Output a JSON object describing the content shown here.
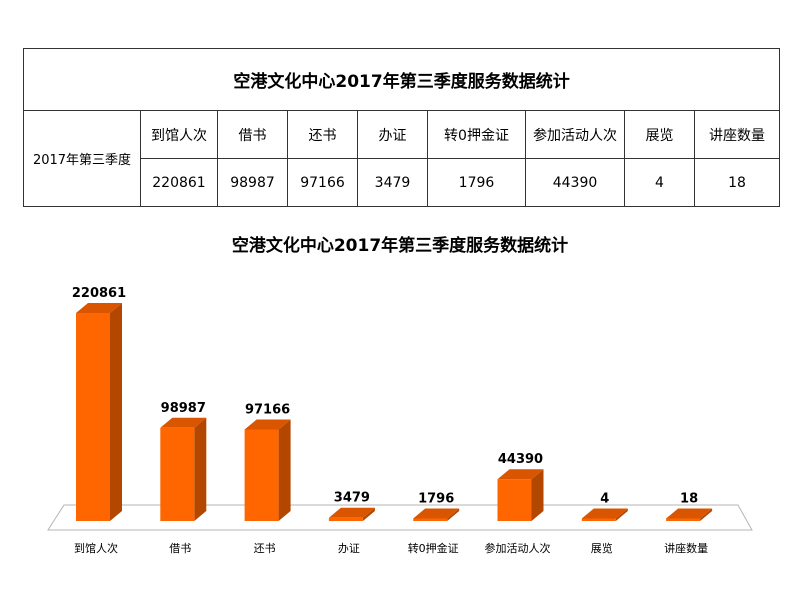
{
  "table": {
    "title": "空港文化中心2017年第三季度服务数据统计",
    "row_label": "2017年第三季度",
    "headers": [
      "到馆人次",
      "借书",
      "还书",
      "办证",
      "转0押金证",
      "参加活动人次",
      "展览",
      "讲座数量"
    ],
    "values": [
      "220861",
      "98987",
      "97166",
      "3479",
      "1796",
      "44390",
      "4",
      "18"
    ]
  },
  "chart_data": {
    "type": "bar",
    "title": "空港文化中心2017年第三季度服务数据统计",
    "categories": [
      "到馆人次",
      "借书",
      "还书",
      "办证",
      "转0押金证",
      "参加活动人次",
      "展览",
      "讲座数量"
    ],
    "values": [
      220861,
      98987,
      97166,
      3479,
      1796,
      44390,
      4,
      18
    ],
    "ylim": [
      0,
      240000
    ],
    "grid": false,
    "legend": "none",
    "bar_color": "#FF6600"
  }
}
